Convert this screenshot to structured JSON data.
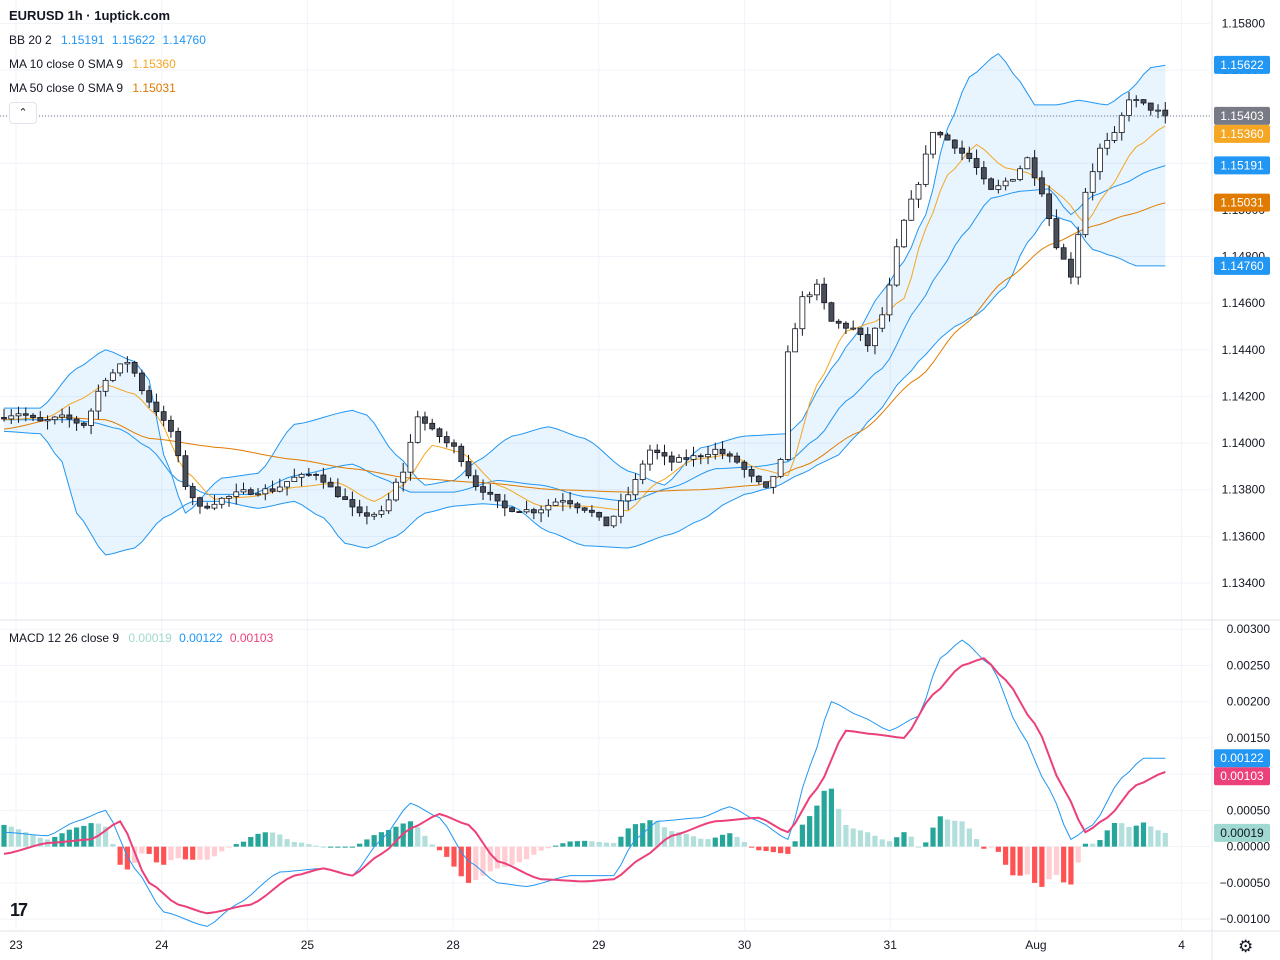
{
  "header": {
    "title": "EURUSD 1h · 1uptick.com",
    "bb": {
      "label": "BB 20 2",
      "basis": "1.15191",
      "upper": "1.15622",
      "lower": "1.14760",
      "color": "#2196f3"
    },
    "ma10": {
      "label": "MA 10 close 0 SMA 9",
      "value": "1.15360",
      "color": "#f5a623"
    },
    "ma50": {
      "label": "MA 50 close 0 SMA 9",
      "value": "1.15031",
      "color": "#e07b00"
    },
    "collapse_glyph": "⌃"
  },
  "macd_legend": {
    "label": "MACD 12 26 close 9",
    "hist": "0.00019",
    "macd": "0.00122",
    "signal": "0.00103",
    "hist_color": "#9fd9cf",
    "macd_color": "#2196f3",
    "signal_color": "#ec407a"
  },
  "price_badges": [
    {
      "text": "1.15622",
      "value": 1.15622,
      "bg": "#2196f3"
    },
    {
      "text": "1.15403",
      "value": 1.15403,
      "bg": "#787b86"
    },
    {
      "text": "1.15360",
      "value": 1.1536,
      "bg": "#f5a623"
    },
    {
      "text": "1.15191",
      "value": 1.15191,
      "bg": "#2196f3"
    },
    {
      "text": "1.15031",
      "value": 1.15031,
      "bg": "#e07b00"
    },
    {
      "text": "1.14760",
      "value": 1.1476,
      "bg": "#2196f3"
    }
  ],
  "macd_badges": [
    {
      "text": "0.00122",
      "value": 0.00122,
      "bg": "#2196f3"
    },
    {
      "text": "0.00103",
      "value": 0.00103,
      "bg": "#ec407a"
    },
    {
      "text": "0.00019",
      "value": 0.00019,
      "bg": "#9fd9cf"
    }
  ],
  "icons": {
    "logo": "tradingview-logo-icon",
    "logo_glyph": "17",
    "settings": "gear-icon",
    "settings_glyph": "⚙"
  },
  "chart_data": {
    "type": "candlestick",
    "symbol": "EURUSD",
    "timeframe": "1h",
    "price_axis": {
      "ticks": [
        1.134,
        1.136,
        1.138,
        1.14,
        1.142,
        1.144,
        1.146,
        1.148,
        1.15,
        1.152,
        1.154,
        1.156,
        1.158
      ],
      "tick_labels": [
        "1.13400",
        "1.13600",
        "1.13800",
        "1.14000",
        "1.14200",
        "1.14400",
        "1.14600",
        "1.14800",
        "1.15000",
        "1.15200",
        "1.15400",
        "1.15600",
        "1.15800"
      ],
      "range": [
        1.1325,
        1.159
      ]
    },
    "macd_axis": {
      "ticks": [
        -0.001,
        -0.0005,
        0,
        0.0005,
        0.001,
        0.0015,
        0.002,
        0.0025,
        0.003
      ],
      "tick_labels": [
        "−0.00100",
        "−0.00050",
        "0.00000",
        "0.00050",
        "0.00100",
        "0.00150",
        "0.00200",
        "0.00250",
        "0.00300"
      ],
      "range": [
        -0.00115,
        0.0031
      ]
    },
    "x_axis": {
      "labels": [
        "23",
        "24",
        "25",
        "28",
        "29",
        "30",
        "31",
        "Aug",
        "4"
      ],
      "range": [
        0,
        168
      ]
    },
    "last_price": 1.15403,
    "price_keys": [
      [
        0,
        1.1411
      ],
      [
        3,
        1.1413
      ],
      [
        6,
        1.1409
      ],
      [
        9,
        1.1411
      ],
      [
        12,
        1.1408
      ],
      [
        15,
        1.1428
      ],
      [
        18,
        1.1435
      ],
      [
        21,
        1.1418
      ],
      [
        24,
        1.1405
      ],
      [
        26,
        1.1382
      ],
      [
        28,
        1.1372
      ],
      [
        31,
        1.1376
      ],
      [
        34,
        1.1379
      ],
      [
        38,
        1.138
      ],
      [
        41,
        1.1385
      ],
      [
        44,
        1.1387
      ],
      [
        47,
        1.1378
      ],
      [
        50,
        1.1369
      ],
      [
        53,
        1.137
      ],
      [
        56,
        1.1388
      ],
      [
        58,
        1.1412
      ],
      [
        60,
        1.1405
      ],
      [
        63,
        1.1398
      ],
      [
        66,
        1.1382
      ],
      [
        70,
        1.1372
      ],
      [
        74,
        1.1371
      ],
      [
        78,
        1.1376
      ],
      [
        81,
        1.1372
      ],
      [
        84,
        1.1365
      ],
      [
        87,
        1.1378
      ],
      [
        90,
        1.1397
      ],
      [
        93,
        1.1392
      ],
      [
        96,
        1.1394
      ],
      [
        99,
        1.1397
      ],
      [
        102,
        1.1392
      ],
      [
        104,
        1.1385
      ],
      [
        106,
        1.138
      ],
      [
        108,
        1.1392
      ],
      [
        109,
        1.1438
      ],
      [
        111,
        1.1462
      ],
      [
        113,
        1.1467
      ],
      [
        115,
        1.1452
      ],
      [
        118,
        1.1449
      ],
      [
        120,
        1.1442
      ],
      [
        122,
        1.1455
      ],
      [
        125,
        1.1495
      ],
      [
        127,
        1.1512
      ],
      [
        129,
        1.1534
      ],
      [
        131,
        1.153
      ],
      [
        134,
        1.1522
      ],
      [
        137,
        1.1508
      ],
      [
        140,
        1.1514
      ],
      [
        142,
        1.1522
      ],
      [
        144,
        1.1508
      ],
      [
        146,
        1.1485
      ],
      [
        148,
        1.1472
      ],
      [
        150,
        1.1508
      ],
      [
        152,
        1.1526
      ],
      [
        154,
        1.1532
      ],
      [
        156,
        1.1548
      ],
      [
        158,
        1.1545
      ],
      [
        160,
        1.1542
      ]
    ],
    "bb_upper_keys": [
      [
        0,
        1.1415
      ],
      [
        5,
        1.1415
      ],
      [
        10,
        1.1432
      ],
      [
        14,
        1.144
      ],
      [
        18,
        1.1435
      ],
      [
        20,
        1.1427
      ],
      [
        22,
        1.1395
      ],
      [
        25,
        1.137
      ],
      [
        30,
        1.1385
      ],
      [
        35,
        1.1387
      ],
      [
        40,
        1.1408
      ],
      [
        48,
        1.1414
      ],
      [
        50,
        1.1412
      ],
      [
        54,
        1.1395
      ],
      [
        58,
        1.1382
      ],
      [
        62,
        1.1384
      ],
      [
        65,
        1.1392
      ],
      [
        70,
        1.1403
      ],
      [
        75,
        1.1407
      ],
      [
        80,
        1.1402
      ],
      [
        86,
        1.1388
      ],
      [
        91,
        1.1382
      ],
      [
        96,
        1.1398
      ],
      [
        102,
        1.1403
      ],
      [
        108,
        1.1404
      ],
      [
        110,
        1.141
      ],
      [
        112,
        1.1422
      ],
      [
        114,
        1.1432
      ],
      [
        117,
        1.1445
      ],
      [
        121,
        1.1465
      ],
      [
        124,
        1.1478
      ],
      [
        127,
        1.1498
      ],
      [
        130,
        1.1535
      ],
      [
        133,
        1.1557
      ],
      [
        137,
        1.1567
      ],
      [
        140,
        1.1555
      ],
      [
        142,
        1.1545
      ],
      [
        145,
        1.1545
      ],
      [
        148,
        1.1547
      ],
      [
        152,
        1.1545
      ],
      [
        155,
        1.1551
      ],
      [
        158,
        1.1561
      ],
      [
        160,
        1.1562
      ]
    ],
    "bb_lower_keys": [
      [
        0,
        1.1405
      ],
      [
        5,
        1.1404
      ],
      [
        8,
        1.1392
      ],
      [
        10,
        1.137
      ],
      [
        14,
        1.1352
      ],
      [
        18,
        1.1355
      ],
      [
        22,
        1.1368
      ],
      [
        26,
        1.1375
      ],
      [
        30,
        1.1375
      ],
      [
        35,
        1.1372
      ],
      [
        40,
        1.1375
      ],
      [
        44,
        1.1368
      ],
      [
        47,
        1.1357
      ],
      [
        50,
        1.1355
      ],
      [
        54,
        1.136
      ],
      [
        58,
        1.137
      ],
      [
        62,
        1.1373
      ],
      [
        66,
        1.1374
      ],
      [
        70,
        1.1373
      ],
      [
        75,
        1.1362
      ],
      [
        80,
        1.1356
      ],
      [
        86,
        1.1355
      ],
      [
        92,
        1.1361
      ],
      [
        96,
        1.1367
      ],
      [
        100,
        1.1375
      ],
      [
        102,
        1.1378
      ],
      [
        106,
        1.1381
      ],
      [
        110,
        1.1387
      ],
      [
        113,
        1.1392
      ],
      [
        115,
        1.1395
      ],
      [
        117,
        1.1402
      ],
      [
        120,
        1.1412
      ],
      [
        124,
        1.1428
      ],
      [
        127,
        1.1438
      ],
      [
        129,
        1.1445
      ],
      [
        131,
        1.145
      ],
      [
        134,
        1.1455
      ],
      [
        138,
        1.1467
      ],
      [
        141,
        1.1486
      ],
      [
        144,
        1.1498
      ],
      [
        147,
        1.1495
      ],
      [
        150,
        1.1483
      ],
      [
        153,
        1.148
      ],
      [
        156,
        1.1476
      ],
      [
        160,
        1.1476
      ]
    ],
    "bb_basis_keys": [
      [
        0,
        1.141
      ],
      [
        5,
        1.141
      ],
      [
        9,
        1.141
      ],
      [
        12,
        1.1409
      ],
      [
        16,
        1.1406
      ],
      [
        20,
        1.1398
      ],
      [
        24,
        1.1384
      ],
      [
        28,
        1.1378
      ],
      [
        34,
        1.1378
      ],
      [
        40,
        1.1386
      ],
      [
        48,
        1.1391
      ],
      [
        52,
        1.1385
      ],
      [
        56,
        1.1379
      ],
      [
        62,
        1.1379
      ],
      [
        68,
        1.1384
      ],
      [
        74,
        1.1382
      ],
      [
        80,
        1.1377
      ],
      [
        86,
        1.1375
      ],
      [
        92,
        1.1381
      ],
      [
        98,
        1.1389
      ],
      [
        104,
        1.139
      ],
      [
        108,
        1.1392
      ],
      [
        112,
        1.1402
      ],
      [
        116,
        1.1418
      ],
      [
        121,
        1.1432
      ],
      [
        126,
        1.1459
      ],
      [
        129,
        1.1474
      ],
      [
        132,
        1.1489
      ],
      [
        136,
        1.1505
      ],
      [
        140,
        1.1508
      ],
      [
        144,
        1.1509
      ],
      [
        147,
        1.1498
      ],
      [
        150,
        1.1506
      ],
      [
        154,
        1.1511
      ],
      [
        158,
        1.1517
      ],
      [
        160,
        1.1519
      ]
    ],
    "ma10_keys": [
      [
        0,
        1.141
      ],
      [
        6,
        1.1411
      ],
      [
        10,
        1.1418
      ],
      [
        14,
        1.1425
      ],
      [
        18,
        1.1421
      ],
      [
        21,
        1.1412
      ],
      [
        25,
        1.1388
      ],
      [
        29,
        1.1376
      ],
      [
        34,
        1.1377
      ],
      [
        40,
        1.1381
      ],
      [
        46,
        1.1383
      ],
      [
        51,
        1.1375
      ],
      [
        55,
        1.1382
      ],
      [
        59,
        1.1399
      ],
      [
        63,
        1.1396
      ],
      [
        68,
        1.1382
      ],
      [
        74,
        1.1373
      ],
      [
        80,
        1.1373
      ],
      [
        86,
        1.1371
      ],
      [
        90,
        1.1383
      ],
      [
        95,
        1.1393
      ],
      [
        100,
        1.1395
      ],
      [
        104,
        1.1389
      ],
      [
        108,
        1.1386
      ],
      [
        112,
        1.1425
      ],
      [
        116,
        1.1448
      ],
      [
        120,
        1.1452
      ],
      [
        124,
        1.1462
      ],
      [
        127,
        1.1492
      ],
      [
        130,
        1.1515
      ],
      [
        134,
        1.1528
      ],
      [
        138,
        1.1518
      ],
      [
        141,
        1.1516
      ],
      [
        144,
        1.151
      ],
      [
        146,
        1.1505
      ],
      [
        149,
        1.1494
      ],
      [
        152,
        1.1508
      ],
      [
        156,
        1.1527
      ],
      [
        160,
        1.1536
      ]
    ],
    "ma50_keys": [
      [
        0,
        1.1406
      ],
      [
        8,
        1.1411
      ],
      [
        14,
        1.141
      ],
      [
        20,
        1.1402
      ],
      [
        30,
        1.1398
      ],
      [
        40,
        1.1393
      ],
      [
        48,
        1.1389
      ],
      [
        56,
        1.1385
      ],
      [
        66,
        1.1383
      ],
      [
        76,
        1.138
      ],
      [
        86,
        1.1379
      ],
      [
        96,
        1.138
      ],
      [
        104,
        1.1382
      ],
      [
        110,
        1.139
      ],
      [
        118,
        1.1405
      ],
      [
        126,
        1.1428
      ],
      [
        132,
        1.145
      ],
      [
        138,
        1.147
      ],
      [
        144,
        1.1485
      ],
      [
        150,
        1.1493
      ],
      [
        155,
        1.1498
      ],
      [
        160,
        1.1503
      ]
    ],
    "macd_keys": [
      [
        0,
        0.0002
      ],
      [
        6,
        0.00015
      ],
      [
        10,
        0.00035
      ],
      [
        14,
        0.0005
      ],
      [
        18,
        -0.0003
      ],
      [
        22,
        -0.0009
      ],
      [
        28,
        -0.0011
      ],
      [
        32,
        -0.0008
      ],
      [
        38,
        -0.00035
      ],
      [
        44,
        -0.0003
      ],
      [
        48,
        -0.0004
      ],
      [
        52,
        0.0001
      ],
      [
        56,
        0.0006
      ],
      [
        60,
        0.0004
      ],
      [
        64,
        -0.0002
      ],
      [
        68,
        -0.0005
      ],
      [
        72,
        -0.00055
      ],
      [
        78,
        -0.0004
      ],
      [
        84,
        -0.0004
      ],
      [
        87,
        0.0001
      ],
      [
        90,
        0.00035
      ],
      [
        96,
        0.0004
      ],
      [
        100,
        0.00055
      ],
      [
        104,
        0.00035
      ],
      [
        108,
        0.0001
      ],
      [
        111,
        0.0011
      ],
      [
        114,
        0.002
      ],
      [
        118,
        0.0018
      ],
      [
        122,
        0.0016
      ],
      [
        126,
        0.0018
      ],
      [
        129,
        0.0026
      ],
      [
        132,
        0.00285
      ],
      [
        136,
        0.0025
      ],
      [
        140,
        0.0016
      ],
      [
        144,
        0.0008
      ],
      [
        147,
        0.0001
      ],
      [
        150,
        0.0003
      ],
      [
        154,
        0.00095
      ],
      [
        157,
        0.00122
      ],
      [
        160,
        0.00122
      ]
    ],
    "signal_keys": [
      [
        0,
        -0.0001
      ],
      [
        6,
        5e-05
      ],
      [
        12,
        0.0001
      ],
      [
        16,
        0.00035
      ],
      [
        20,
        -0.0005
      ],
      [
        24,
        -0.0008
      ],
      [
        28,
        -0.00092
      ],
      [
        34,
        -0.0008
      ],
      [
        40,
        -0.0004
      ],
      [
        44,
        -0.0003
      ],
      [
        48,
        -0.0004
      ],
      [
        52,
        -0.0001
      ],
      [
        56,
        0.00025
      ],
      [
        60,
        0.00045
      ],
      [
        64,
        0.0003
      ],
      [
        68,
        -0.0002
      ],
      [
        74,
        -0.00045
      ],
      [
        80,
        -0.00048
      ],
      [
        84,
        -0.00045
      ],
      [
        88,
        -0.00015
      ],
      [
        92,
        0.00015
      ],
      [
        98,
        0.00035
      ],
      [
        104,
        0.0004
      ],
      [
        108,
        0.0002
      ],
      [
        112,
        0.0008
      ],
      [
        116,
        0.0016
      ],
      [
        120,
        0.00155
      ],
      [
        124,
        0.0015
      ],
      [
        128,
        0.0021
      ],
      [
        132,
        0.0025
      ],
      [
        135,
        0.0026
      ],
      [
        138,
        0.0023
      ],
      [
        142,
        0.0017
      ],
      [
        146,
        0.0008
      ],
      [
        149,
        0.0002
      ],
      [
        152,
        0.0004
      ],
      [
        156,
        0.00085
      ],
      [
        160,
        0.00103
      ]
    ]
  }
}
